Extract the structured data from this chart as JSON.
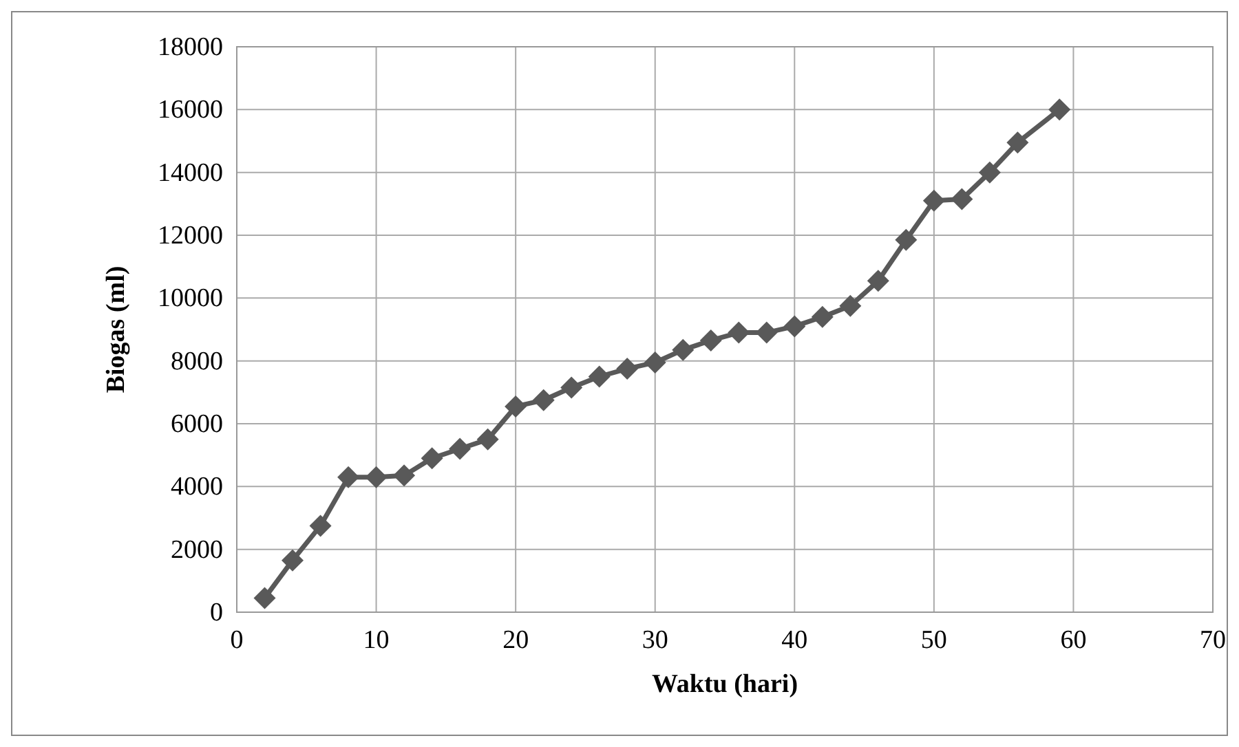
{
  "chart_data": {
    "type": "line",
    "xlabel": "Waktu (hari)",
    "ylabel": "Biogas (ml)",
    "series": [
      {
        "color": "#595959",
        "x": [
          2,
          4,
          6,
          8,
          10,
          12,
          14,
          16,
          18,
          20,
          22,
          24,
          26,
          28,
          30,
          32,
          34,
          36,
          38,
          40,
          42,
          44,
          46,
          48,
          50,
          52,
          54,
          56,
          59
        ],
        "values": [
          450,
          1650,
          2750,
          4300,
          4300,
          4350,
          4900,
          5200,
          5500,
          6550,
          6750,
          7150,
          7500,
          7750,
          7950,
          8350,
          8650,
          8900,
          8900,
          9100,
          9400,
          9750,
          10550,
          11850,
          13100,
          13150,
          14000,
          14950,
          16000
        ]
      }
    ],
    "xlim": [
      0,
      70
    ],
    "xticks": [
      0,
      10,
      20,
      30,
      40,
      50,
      60,
      70
    ],
    "ylim": [
      0,
      18000
    ],
    "yticks": [
      0,
      2000,
      4000,
      6000,
      8000,
      10000,
      12000,
      14000,
      16000,
      18000
    ],
    "grid": true,
    "marker": "diamond",
    "line_style": "solid"
  }
}
